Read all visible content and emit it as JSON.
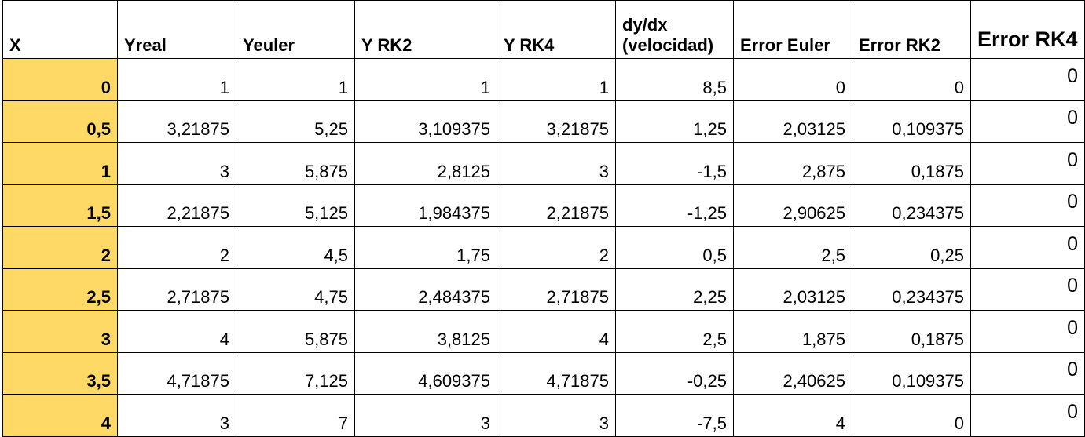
{
  "headers": [
    "X",
    "Yreal",
    "Yeuler",
    "Y RK2",
    "Y RK4",
    "dy/dx (velocidad)",
    "Error Euler",
    "Error RK2",
    "Error RK4"
  ],
  "rows": [
    [
      "0",
      "1",
      "1",
      "1",
      "1",
      "8,5",
      "0",
      "0",
      "0"
    ],
    [
      "0,5",
      "3,21875",
      "5,25",
      "3,109375",
      "3,21875",
      "1,25",
      "2,03125",
      "0,109375",
      "0"
    ],
    [
      "1",
      "3",
      "5,875",
      "2,8125",
      "3",
      "-1,5",
      "2,875",
      "0,1875",
      "0"
    ],
    [
      "1,5",
      "2,21875",
      "5,125",
      "1,984375",
      "2,21875",
      "-1,25",
      "2,90625",
      "0,234375",
      "0"
    ],
    [
      "2",
      "2",
      "4,5",
      "1,75",
      "2",
      "0,5",
      "2,5",
      "0,25",
      "0"
    ],
    [
      "2,5",
      "2,71875",
      "4,75",
      "2,484375",
      "2,71875",
      "2,25",
      "2,03125",
      "0,234375",
      "0"
    ],
    [
      "3",
      "4",
      "5,875",
      "3,8125",
      "4",
      "2,5",
      "1,875",
      "0,1875",
      "0"
    ],
    [
      "3,5",
      "4,71875",
      "7,125",
      "4,609375",
      "4,71875",
      "-0,25",
      "2,40625",
      "0,109375",
      "0"
    ],
    [
      "4",
      "3",
      "7",
      "3",
      "3",
      "-7,5",
      "4",
      "0",
      "0"
    ]
  ],
  "colors": {
    "x_column_fill": "#ffd966",
    "border": "#000000"
  }
}
